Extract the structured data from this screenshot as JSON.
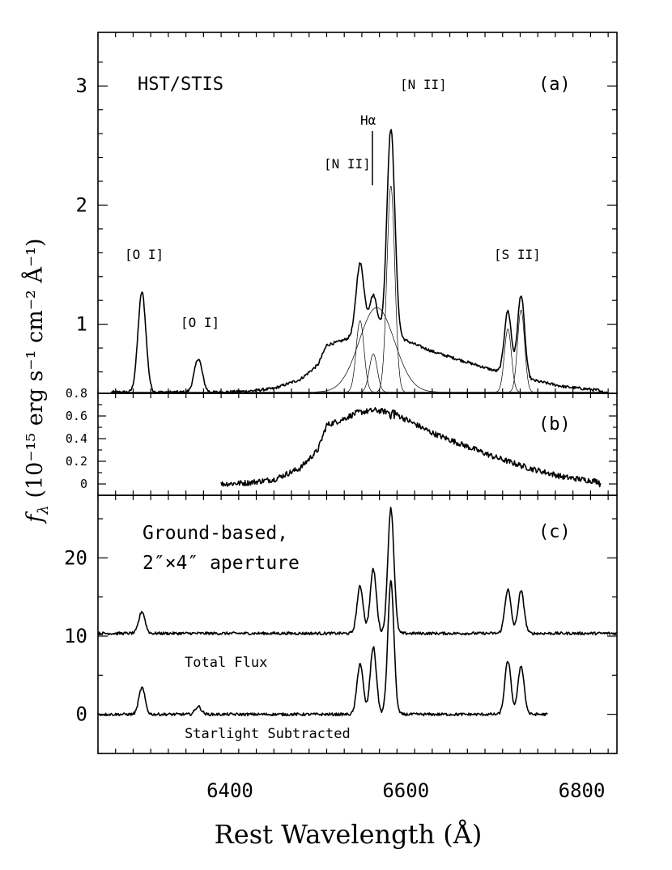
{
  "chart_data": {
    "type": "line",
    "xlabel": "Rest Wavelength (Å)",
    "ylabel": "f",
    "ylabel_sub": "λ",
    "ylabel_rest": " (10⁻¹⁵ erg s⁻¹ cm⁻² Å⁻¹)",
    "xlim": [
      6250,
      6840
    ],
    "xticks": [
      6400,
      6600,
      6800
    ],
    "panels": [
      {
        "id": "a",
        "panel_label": "(a)",
        "title": "HST/STIS",
        "ylim": [
          0.42,
          3.45
        ],
        "yticks": [
          1,
          2,
          3
        ],
        "annotations": {
          "oi_left": "[O I]",
          "oi_right": "[O I]",
          "nii_left": "[N II]",
          "halpha": "Hα",
          "nii_right": "[N II]",
          "sii": "[S II]"
        },
        "continuum": 0.43,
        "lines": [
          {
            "name": "[O I] 6300",
            "center": 6300,
            "sigma": 4.5,
            "peak": 0.84
          },
          {
            "name": "[O I] 6364",
            "center": 6364,
            "sigma": 4.5,
            "peak": 0.28
          },
          {
            "name": "[N II] 6548",
            "center": 6548,
            "sigma": 4.5,
            "peak": 0.6
          },
          {
            "name": "Hα narrow",
            "center": 6563,
            "sigma": 4.5,
            "peak": 0.32
          },
          {
            "name": "[N II] 6583",
            "center": 6583,
            "sigma": 4.5,
            "peak": 1.73
          },
          {
            "name": "Hα broad",
            "center": 6567,
            "sigma": 20,
            "peak": 0.71
          },
          {
            "name": "[S II] 6716",
            "center": 6716,
            "sigma": 4.0,
            "peak": 0.53
          },
          {
            "name": "[S II] 6731",
            "center": 6731,
            "sigma": 4.0,
            "peak": 0.69
          }
        ]
      },
      {
        "id": "b",
        "panel_label": "(b)",
        "ylim": [
          -0.1,
          0.8
        ],
        "yticks": [
          0,
          0.2,
          0.4,
          0.6,
          0.8
        ],
        "ytick_labels": [
          "0",
          "0.2",
          "0.4",
          "0.6",
          "0.8"
        ],
        "residual_points": [
          [
            6390,
            0.0
          ],
          [
            6420,
            0.01
          ],
          [
            6450,
            0.04
          ],
          [
            6480,
            0.14
          ],
          [
            6500,
            0.3
          ],
          [
            6510,
            0.52
          ],
          [
            6525,
            0.56
          ],
          [
            6545,
            0.63
          ],
          [
            6565,
            0.65
          ],
          [
            6585,
            0.63
          ],
          [
            6605,
            0.55
          ],
          [
            6630,
            0.45
          ],
          [
            6660,
            0.36
          ],
          [
            6700,
            0.24
          ],
          [
            6740,
            0.14
          ],
          [
            6780,
            0.06
          ],
          [
            6820,
            0.02
          ]
        ]
      },
      {
        "id": "c",
        "panel_label": "(c)",
        "title_line1": "Ground-based,",
        "title_line2": "2″×4″ aperture",
        "ylim": [
          -5,
          28
        ],
        "yticks": [
          0,
          10,
          20
        ],
        "series": [
          {
            "name": "Total Flux",
            "offset": 10,
            "lines": [
              {
                "center": 6300,
                "sigma": 3.5,
                "peak": 2.8
              },
              {
                "center": 6548,
                "sigma": 3.5,
                "peak": 6.0
              },
              {
                "center": 6563,
                "sigma": 3.5,
                "peak": 8.2
              },
              {
                "center": 6583,
                "sigma": 3.5,
                "peak": 16.0
              },
              {
                "center": 6716,
                "sigma": 3.5,
                "peak": 5.6
              },
              {
                "center": 6731,
                "sigma": 3.5,
                "peak": 5.4
              }
            ]
          },
          {
            "name": "Starlight Subtracted",
            "offset": 0,
            "xmax": 6762,
            "lines": [
              {
                "center": 6300,
                "sigma": 3.5,
                "peak": 3.4
              },
              {
                "center": 6364,
                "sigma": 3.5,
                "peak": 1.0
              },
              {
                "center": 6548,
                "sigma": 3.5,
                "peak": 6.5
              },
              {
                "center": 6563,
                "sigma": 3.5,
                "peak": 8.6
              },
              {
                "center": 6583,
                "sigma": 3.5,
                "peak": 17.0
              },
              {
                "center": 6716,
                "sigma": 3.5,
                "peak": 6.8
              },
              {
                "center": 6731,
                "sigma": 3.5,
                "peak": 6.2
              }
            ]
          }
        ]
      }
    ]
  }
}
